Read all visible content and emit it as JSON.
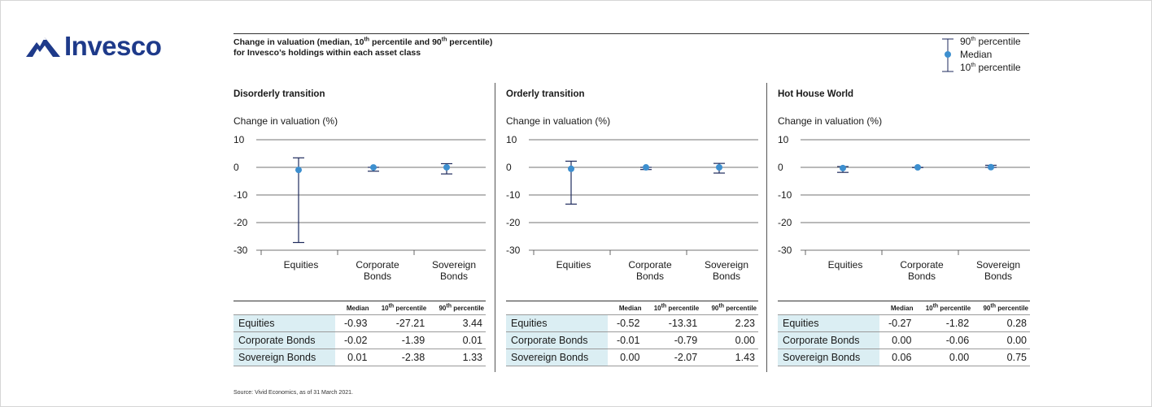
{
  "brand": {
    "name": "Invesco"
  },
  "chart_title": {
    "line1_pre": "Change in valuation (median, 10",
    "line1_sup1": "th",
    "line1_mid": " percentile and 90",
    "line1_sup2": "th",
    "line1_post": " percentile)",
    "line2": "for Invesco’s holdings within each asset class"
  },
  "legend": {
    "p90_num": "90",
    "p90_sup": "th",
    "p90_text": " percentile",
    "median": "Median",
    "p10_num": "10",
    "p10_sup": "th",
    "p10_text": " percentile"
  },
  "source": "Source: Vivid Economics, as of 31 March 2021.",
  "colors": {
    "marker": "#3d8fcf",
    "whisker": "#1e2a5c",
    "row_label_bg": "#dbeef3"
  },
  "chart_data": [
    {
      "type": "errorbar",
      "title": "Disorderly transition",
      "ylabel": "Change in valuation (%)",
      "ylim": [
        -30,
        10
      ],
      "yticks": [
        "10",
        "0",
        "-10",
        "-20",
        "-30"
      ],
      "categories": [
        [
          "Equities"
        ],
        [
          "Corporate",
          "Bonds"
        ],
        [
          "Sovereign",
          "Bonds"
        ]
      ],
      "table_headers": {
        "median": "Median",
        "p10_num": "10",
        "p10_sup": "th",
        "p10_text": " percentile",
        "p90_num": "90",
        "p90_sup": "th",
        "p90_text": " percentile"
      },
      "rows": [
        {
          "label": "Equities",
          "median": "-0.93",
          "p10": "-27.21",
          "p90": "3.44"
        },
        {
          "label": "Corporate Bonds",
          "median": "-0.02",
          "p10": "-1.39",
          "p90": "0.01"
        },
        {
          "label": "Sovereign Bonds",
          "median": "0.01",
          "p10": "-2.38",
          "p90": "1.33"
        }
      ]
    },
    {
      "type": "errorbar",
      "title": "Orderly transition",
      "ylabel": "Change in valuation (%)",
      "ylim": [
        -30,
        10
      ],
      "yticks": [
        "10",
        "0",
        "-10",
        "-20",
        "-30"
      ],
      "categories": [
        [
          "Equities"
        ],
        [
          "Corporate",
          "Bonds"
        ],
        [
          "Sovereign",
          "Bonds"
        ]
      ],
      "table_headers": {
        "median": "Median",
        "p10_num": "10",
        "p10_sup": "th",
        "p10_text": " percentile",
        "p90_num": "90",
        "p90_sup": "th",
        "p90_text": " percentile"
      },
      "rows": [
        {
          "label": "Equities",
          "median": "-0.52",
          "p10": "-13.31",
          "p90": "2.23"
        },
        {
          "label": "Corporate Bonds",
          "median": "-0.01",
          "p10": "-0.79",
          "p90": "0.00"
        },
        {
          "label": "Sovereign Bonds",
          "median": "0.00",
          "p10": "-2.07",
          "p90": "1.43"
        }
      ]
    },
    {
      "type": "errorbar",
      "title": "Hot House World",
      "ylabel": "Change in valuation (%)",
      "ylim": [
        -30,
        10
      ],
      "yticks": [
        "10",
        "0",
        "-10",
        "-20",
        "-30"
      ],
      "categories": [
        [
          "Equities"
        ],
        [
          "Corporate",
          "Bonds"
        ],
        [
          "Sovereign",
          "Bonds"
        ]
      ],
      "table_headers": {
        "median": "Median",
        "p10_num": "10",
        "p10_sup": "th",
        "p10_text": " percentile",
        "p90_num": "90",
        "p90_sup": "th",
        "p90_text": " percentile"
      },
      "rows": [
        {
          "label": "Equities",
          "median": "-0.27",
          "p10": "-1.82",
          "p90": "0.28"
        },
        {
          "label": "Corporate Bonds",
          "median": "0.00",
          "p10": "-0.06",
          "p90": "0.00"
        },
        {
          "label": "Sovereign Bonds",
          "median": "0.06",
          "p10": "0.00",
          "p90": "0.75"
        }
      ]
    }
  ]
}
